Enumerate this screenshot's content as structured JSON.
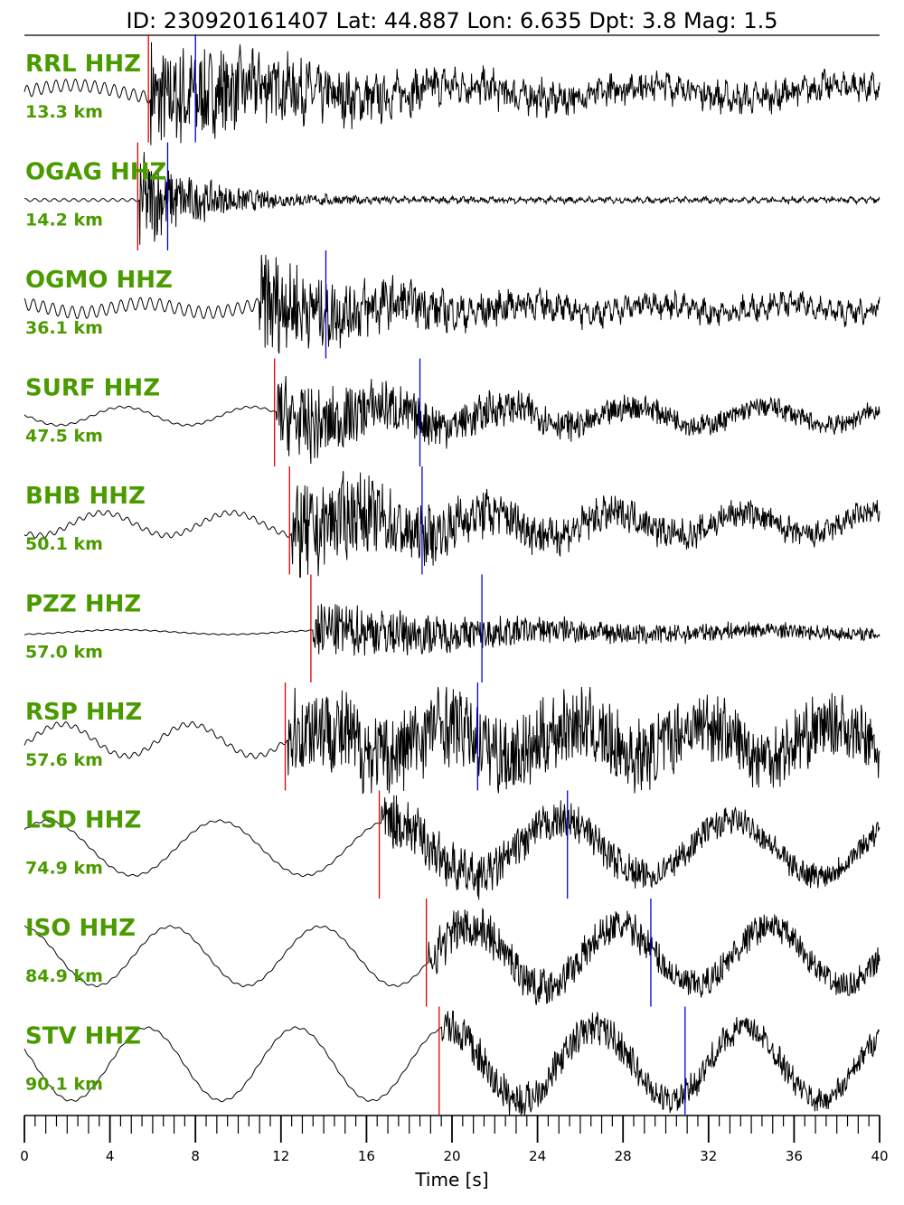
{
  "chart_data": {
    "type": "line",
    "title": "ID: 230920161407 Lat:  44.887 Lon:   6.635 Dpt:     3.8 Mag:   1.5",
    "xlabel": "Time [s]",
    "xlim": [
      0,
      40
    ],
    "x_ticks": [
      0,
      4,
      8,
      12,
      16,
      20,
      24,
      28,
      32,
      36,
      40
    ],
    "p_pick_color": "#e00000",
    "s_pick_color": "#0000e0",
    "station_color": "#4a9a00",
    "series": [
      {
        "name": "RRL HHZ",
        "distance": "13.3 km",
        "p_pick": 5.8,
        "s_pick": 8.0,
        "onset": 5.9,
        "pre": 0.12,
        "peak": 1.0,
        "decay": 7,
        "coda": 0.25,
        "lp": 0.15,
        "lp_period": 9,
        "freq": 4
      },
      {
        "name": "OGAG HHZ",
        "distance": "14.2 km",
        "p_pick": 5.3,
        "s_pick": 6.7,
        "onset": 5.4,
        "pre": 0.03,
        "peak": 1.0,
        "decay": 3,
        "coda": 0.05,
        "lp": 0.0,
        "lp_period": 9,
        "freq": 3
      },
      {
        "name": "OGMO HHZ",
        "distance": "36.1 km",
        "p_pick": null,
        "s_pick": 14.1,
        "onset": 11.0,
        "pre": 0.12,
        "peak": 1.0,
        "decay": 5,
        "coda": 0.2,
        "lp": 0.1,
        "lp_period": 6,
        "freq": 3
      },
      {
        "name": "SURF HHZ",
        "distance": "47.5 km",
        "p_pick": 11.7,
        "s_pick": 18.5,
        "onset": 11.8,
        "pre": 0.02,
        "peak": 0.75,
        "decay": 8,
        "coda": 0.18,
        "lp": 0.2,
        "lp_period": 6,
        "freq": 3
      },
      {
        "name": "BHB HHZ",
        "distance": "50.1 km",
        "p_pick": 12.4,
        "s_pick": 18.6,
        "onset": 12.5,
        "pre": 0.05,
        "peak": 0.9,
        "decay": 9,
        "coda": 0.2,
        "lp": 0.25,
        "lp_period": 6,
        "freq": 3
      },
      {
        "name": "PZZ HHZ",
        "distance": "57.0 km",
        "p_pick": 13.4,
        "s_pick": 21.4,
        "onset": 13.5,
        "pre": 0.01,
        "peak": 0.55,
        "decay": 10,
        "coda": 0.1,
        "lp": 0.05,
        "lp_period": 10,
        "freq": 3
      },
      {
        "name": "RSP HHZ",
        "distance": "57.6 km",
        "p_pick": 12.2,
        "s_pick": 21.2,
        "onset": 12.3,
        "pre": 0.05,
        "peak": 0.55,
        "decay": 30,
        "coda": 0.45,
        "lp": 0.35,
        "lp_period": 6,
        "freq": 5
      },
      {
        "name": "LSD HHZ",
        "distance": "74.9 km",
        "p_pick": 16.6,
        "s_pick": 25.4,
        "onset": 16.7,
        "pre": 0.02,
        "peak": 0.4,
        "decay": 12,
        "coda": 0.2,
        "lp": 0.6,
        "lp_period": 8,
        "freq": 3
      },
      {
        "name": "ISO HHZ",
        "distance": "84.9 km",
        "p_pick": 18.8,
        "s_pick": 29.3,
        "onset": 18.9,
        "pre": 0.02,
        "peak": 0.3,
        "decay": 15,
        "coda": 0.2,
        "lp": 0.65,
        "lp_period": 7,
        "freq": 4
      },
      {
        "name": "STV HHZ",
        "distance": "90.1 km",
        "p_pick": 19.4,
        "s_pick": 30.9,
        "onset": 19.5,
        "pre": 0.02,
        "peak": 0.25,
        "decay": 15,
        "coda": 0.2,
        "lp": 0.8,
        "lp_period": 7,
        "freq": 4
      }
    ]
  }
}
